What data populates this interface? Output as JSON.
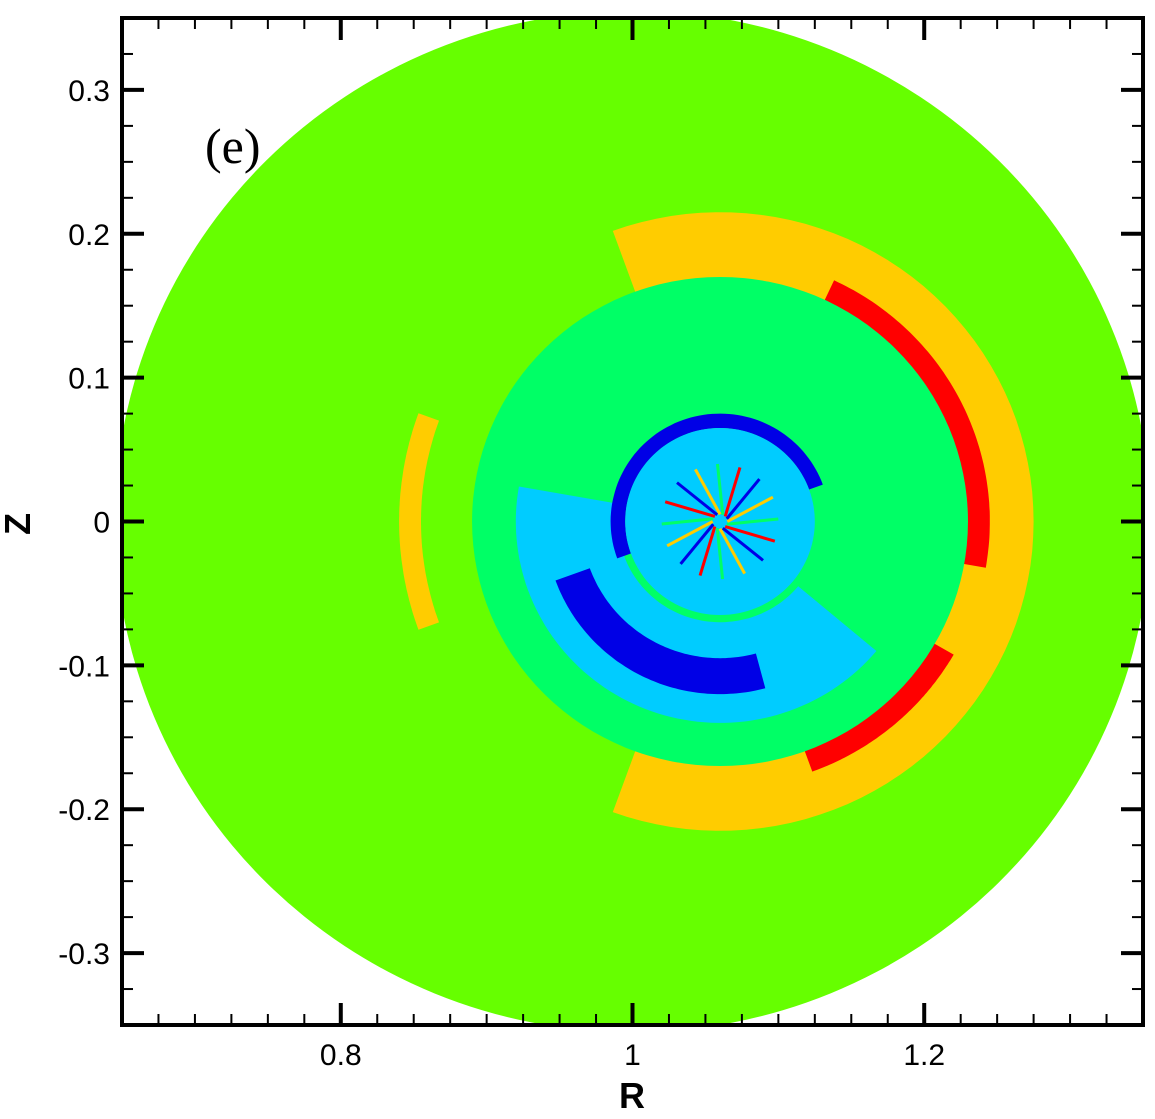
{
  "chart_data": {
    "type": "heatmap",
    "title": "",
    "panel_label": "(e)",
    "xlabel": "R",
    "ylabel": "Z",
    "xlim": [
      0.65,
      1.35
    ],
    "ylim": [
      -0.35,
      0.35
    ],
    "x_ticks": [
      0.8,
      1.0,
      1.2
    ],
    "x_tick_labels": [
      "0.8",
      "1",
      "1.2"
    ],
    "y_ticks": [
      0.3,
      0.2,
      0.1,
      0.0,
      -0.1,
      -0.2,
      -0.3
    ],
    "y_tick_labels": [
      "0.3",
      "0.2",
      "0.1",
      "0",
      "-0.1",
      "-0.2",
      "-0.3"
    ],
    "grid": false,
    "domain": {
      "shape": "circle",
      "center_r": 1.0,
      "center_z": 0.0,
      "radius": 0.355
    },
    "magnetic_axis": {
      "r": 1.06,
      "z": 0.0
    },
    "colors": {
      "background": "#66ff00",
      "cyan_green": "#00ff66",
      "light_blue": "#00ccff",
      "dark_blue": "#0000e6",
      "orange": "#ffcc00",
      "red": "#ff0000"
    },
    "regions": [
      {
        "name": "outer-orange-crescent",
        "color": "orange",
        "r_outer": 0.215,
        "r_inner": 0.155,
        "theta_start": 110,
        "theta_end": -110
      },
      {
        "name": "red-band-upper",
        "color": "red",
        "r_outer": 0.185,
        "r_inner": 0.165,
        "theta_start": 65,
        "theta_end": -10
      },
      {
        "name": "red-band-lower",
        "color": "red",
        "r_outer": 0.185,
        "r_inner": 0.165,
        "theta_start": -30,
        "theta_end": -70
      },
      {
        "name": "left-orange-sliver",
        "color": "orange",
        "r_outer": 0.22,
        "r_inner": 0.205,
        "theta_start": 160,
        "theta_end": 200
      },
      {
        "name": "mid-cyan-green-annulus",
        "color": "cyan_green",
        "r_outer": 0.17,
        "r_inner": 0.075
      },
      {
        "name": "light-blue-band",
        "color": "light_blue",
        "r_outer": 0.14,
        "r_inner": 0.07,
        "theta_start": 170,
        "theta_end": 320
      },
      {
        "name": "dark-blue-crescent-lower",
        "color": "dark_blue",
        "r_outer": 0.12,
        "r_inner": 0.095,
        "theta_start": 200,
        "theta_end": 285
      },
      {
        "name": "inner-dark-blue-ring",
        "color": "dark_blue",
        "r_outer": 0.075,
        "r_inner": 0.065,
        "theta_start": 20,
        "theta_end": 200
      },
      {
        "name": "core-light-blue",
        "color": "light_blue",
        "r_outer": 0.065,
        "r_inner": 0.0
      }
    ]
  }
}
